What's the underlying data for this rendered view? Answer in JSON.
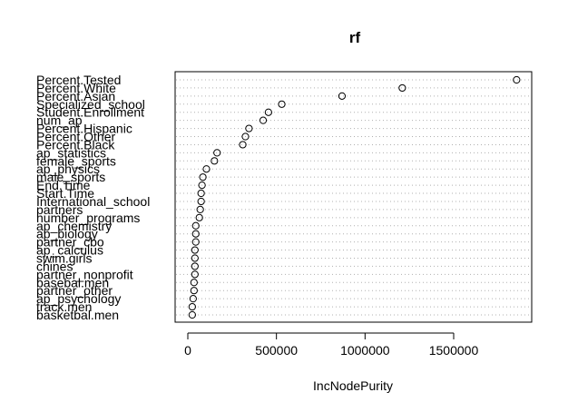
{
  "chart_data": {
    "type": "scatter",
    "title": "rf",
    "xlabel": "IncNodePurity",
    "xlim": [
      0,
      1900000
    ],
    "xticks": [
      0,
      500000,
      1000000,
      1500000
    ],
    "xtick_labels": [
      "0",
      "500000",
      "1000000",
      "1500000"
    ],
    "grid": "dotted horizontal guide lines",
    "categories": [
      "Percent.Tested",
      "Percent.White",
      "Percent.Asian",
      "Specialized_school",
      "Student.Enrollment",
      "num_ap",
      "Percent.Hispanic",
      "Percent.Other",
      "Percent.Black",
      "ap_statistics",
      "female_sports",
      "ap_physics",
      "male_sports",
      "End.Time",
      "Start.Time",
      "International_school",
      "partners",
      "number_programs",
      "ap_chemistry",
      "ap_biology",
      "partner_cbo",
      "ap_calculus",
      "swim.girls",
      "chines",
      "partner_nonprofit",
      "basebal.men",
      "partner_other",
      "ap_psychology",
      "track.men",
      "basketbal.men"
    ],
    "values": [
      1855000,
      1210000,
      870000,
      530000,
      455000,
      425000,
      345000,
      325000,
      310000,
      165000,
      150000,
      105000,
      85000,
      80000,
      75000,
      75000,
      70000,
      65000,
      45000,
      45000,
      45000,
      40000,
      40000,
      40000,
      40000,
      35000,
      35000,
      30000,
      25000,
      25000
    ]
  }
}
